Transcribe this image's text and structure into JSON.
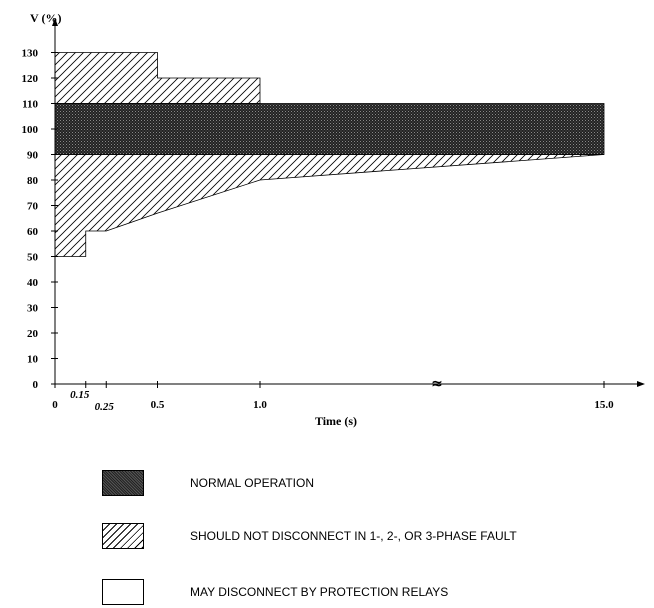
{
  "chart_data": {
    "type": "area",
    "title": "",
    "ylabel": "V (%)",
    "xlabel": "Time (s)",
    "ylim": [
      0,
      135
    ],
    "yticks": [
      0,
      10,
      20,
      30,
      40,
      50,
      60,
      70,
      80,
      90,
      100,
      110,
      120,
      130
    ],
    "xticks": [
      {
        "value": 0,
        "label": "0"
      },
      {
        "value": 0.15,
        "label": "0.15"
      },
      {
        "value": 0.25,
        "label": "0.25"
      },
      {
        "value": 0.5,
        "label": "0.5"
      },
      {
        "value": 1.0,
        "label": "1.0"
      },
      {
        "value": 15.0,
        "label": "15.0"
      }
    ],
    "axis_break": {
      "between": [
        1.0,
        15.0
      ],
      "symbol": "≈"
    },
    "regions": [
      {
        "name": "normal",
        "pattern": "dense-dots",
        "upper": [
          [
            0,
            110
          ],
          [
            15.0,
            110
          ]
        ],
        "lower": [
          [
            0,
            90
          ],
          [
            15.0,
            90
          ]
        ]
      },
      {
        "name": "should-not-disconnect-high",
        "pattern": "hatch",
        "upper": [
          [
            0,
            130
          ],
          [
            0.5,
            130
          ],
          [
            0.5,
            120
          ],
          [
            1.0,
            120
          ],
          [
            1.0,
            110
          ]
        ],
        "lower": [
          [
            0,
            110
          ],
          [
            1.0,
            110
          ]
        ]
      },
      {
        "name": "should-not-disconnect-low",
        "pattern": "hatch",
        "upper": [
          [
            0,
            90
          ],
          [
            15.0,
            90
          ]
        ],
        "lower": [
          [
            0,
            50
          ],
          [
            0.15,
            50
          ],
          [
            0.15,
            60
          ],
          [
            0.25,
            60
          ],
          [
            0.5,
            67
          ],
          [
            1.0,
            80
          ],
          [
            15.0,
            90
          ]
        ]
      }
    ]
  },
  "legend": {
    "items": [
      {
        "label": "NORMAL OPERATION",
        "pattern": "dense-dots"
      },
      {
        "label": "SHOULD NOT DISCONNECT IN 1-, 2-, OR 3-PHASE FAULT",
        "pattern": "hatch"
      },
      {
        "label": "MAY DISCONNECT BY PROTECTION RELAYS",
        "pattern": "blank"
      }
    ]
  }
}
